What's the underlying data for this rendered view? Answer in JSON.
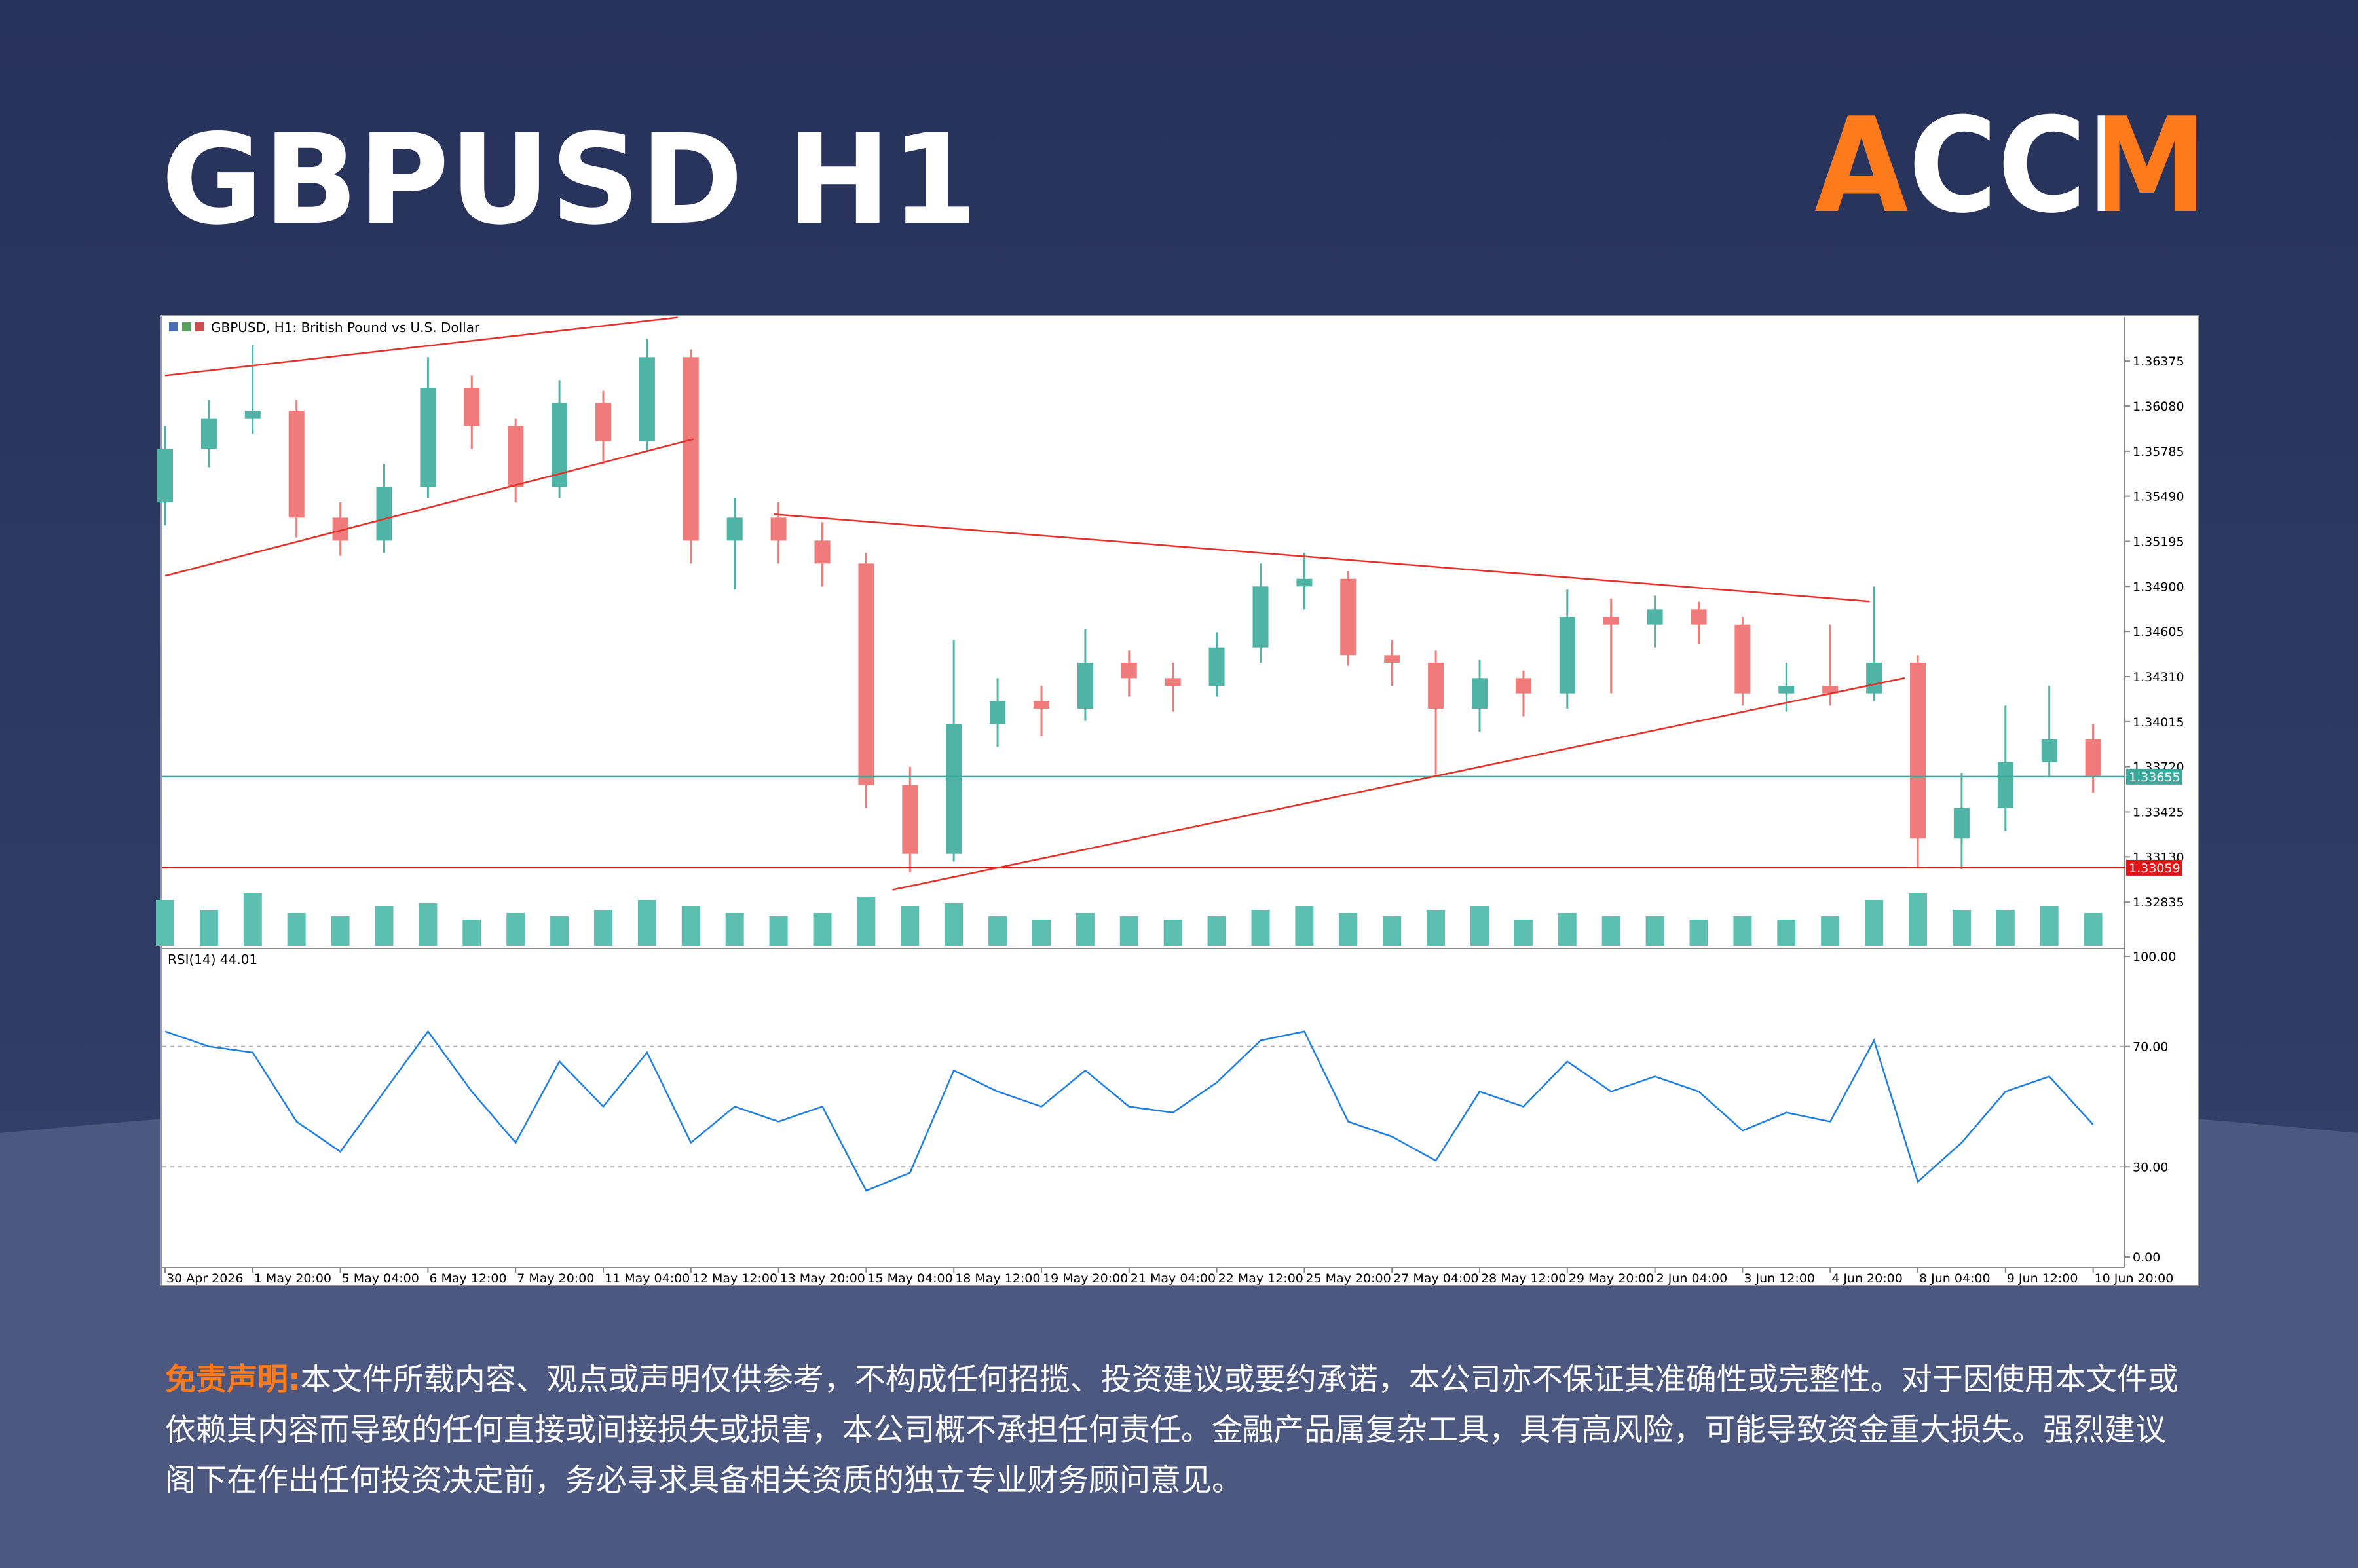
{
  "header": {
    "title": "GBPUSD H1",
    "logo": "ACCM"
  },
  "chart_data": {
    "type": "candlestick",
    "title": "GBPUSD, H1:  British Pound vs U.S. Dollar",
    "categories": [
      "30 Apr 2026",
      null,
      "1 May 20:00",
      null,
      "5 May 04:00",
      null,
      "6 May 12:00",
      null,
      "7 May 20:00",
      null,
      "11 May 04:00",
      null,
      "12 May 12:00",
      null,
      "13 May 20:00",
      null,
      "15 May 04:00",
      null,
      "18 May 12:00",
      null,
      "19 May 20:00",
      null,
      "21 May 04:00",
      null,
      "22 May 12:00",
      null,
      "25 May 20:00",
      null,
      "27 May 04:00",
      null,
      "28 May 12:00",
      null,
      "29 May 20:00",
      null,
      "2 Jun 04:00",
      null,
      "3 Jun 12:00",
      null,
      "4 Jun 20:00",
      null,
      "8 Jun 04:00",
      null,
      "9 Jun 12:00",
      null,
      "10 Jun 20:00"
    ],
    "open": [
      1.3545,
      1.358,
      1.36,
      1.3605,
      1.3535,
      1.352,
      1.3555,
      1.362,
      1.3595,
      1.3555,
      1.361,
      1.3585,
      1.364,
      1.352,
      1.3535,
      1.352,
      1.3505,
      1.336,
      1.3315,
      1.34,
      1.3415,
      1.341,
      1.344,
      1.343,
      1.3425,
      1.345,
      1.349,
      1.3495,
      1.3445,
      1.344,
      1.341,
      1.343,
      1.342,
      1.347,
      1.3465,
      1.3475,
      1.3465,
      1.342,
      1.3425,
      1.342,
      1.344,
      1.3325,
      1.3345,
      1.3375,
      1.339
    ],
    "high": [
      1.3595,
      1.3612,
      1.3648,
      1.3612,
      1.3545,
      1.357,
      1.364,
      1.3628,
      1.36,
      1.3625,
      1.3618,
      1.3652,
      1.3645,
      1.3548,
      1.3545,
      1.3532,
      1.3512,
      1.3372,
      1.3455,
      1.343,
      1.3425,
      1.3462,
      1.3448,
      1.344,
      1.346,
      1.3505,
      1.3512,
      1.35,
      1.3455,
      1.3448,
      1.3442,
      1.3435,
      1.3488,
      1.3482,
      1.3484,
      1.348,
      1.347,
      1.344,
      1.3465,
      1.349,
      1.3445,
      1.3368,
      1.3412,
      1.3425,
      1.34
    ],
    "low": [
      1.353,
      1.3568,
      1.359,
      1.3522,
      1.351,
      1.3512,
      1.3548,
      1.358,
      1.3545,
      1.3548,
      1.357,
      1.3578,
      1.3505,
      1.3488,
      1.3505,
      1.349,
      1.3345,
      1.3303,
      1.331,
      1.3385,
      1.3392,
      1.3402,
      1.3418,
      1.3408,
      1.3418,
      1.344,
      1.3475,
      1.3438,
      1.3425,
      1.3367,
      1.3395,
      1.3405,
      1.341,
      1.342,
      1.345,
      1.3452,
      1.3412,
      1.3408,
      1.3412,
      1.3415,
      1.3306,
      1.3305,
      1.333,
      1.3365,
      1.3355
    ],
    "close": [
      1.358,
      1.36,
      1.3605,
      1.3535,
      1.352,
      1.3555,
      1.362,
      1.3595,
      1.3555,
      1.361,
      1.3585,
      1.364,
      1.352,
      1.3535,
      1.352,
      1.3505,
      1.336,
      1.3315,
      1.34,
      1.3415,
      1.341,
      1.344,
      1.343,
      1.3425,
      1.345,
      1.349,
      1.3495,
      1.3445,
      1.344,
      1.341,
      1.343,
      1.342,
      1.347,
      1.3465,
      1.3475,
      1.3465,
      1.342,
      1.3425,
      1.342,
      1.344,
      1.3325,
      1.3345,
      1.3375,
      1.339,
      1.3366
    ],
    "up_color": "#4fb3a5",
    "down_color": "#ef7b7b",
    "ylim": [
      1.3254,
      1.3665
    ],
    "yticks": [
      1.36375,
      {
        "value": 1.3608,
        "label": "1.36080"
      },
      1.35785,
      {
        "value": 1.3549,
        "label": "1.35490"
      },
      1.35195,
      {
        "value": 1.349,
        "label": "1.34900"
      },
      1.34605,
      {
        "value": 1.3431,
        "label": "1.34310"
      },
      1.34015,
      {
        "value": 1.3372,
        "label": "1.33720"
      },
      1.33425,
      {
        "value": 1.3313,
        "label": "1.33130"
      },
      1.32835
    ],
    "hlines": [
      {
        "value": 1.33655,
        "color": "#3aa89a"
      },
      {
        "value": 1.33059,
        "color": "#e01515"
      }
    ],
    "trendlines": [
      {
        "x": [
          0,
          11.7
        ],
        "y": [
          1.3628,
          1.3666
        ],
        "color": "#e8302a"
      },
      {
        "x": [
          0,
          12.06
        ],
        "y": [
          1.34969,
          1.35864
        ],
        "color": "#e8302a"
      },
      {
        "x": [
          13.9,
          38.9
        ],
        "y": [
          1.35372,
          1.34802
        ],
        "color": "#e8302a"
      },
      {
        "x": [
          16.6,
          39.7
        ],
        "y": [
          1.32915,
          1.34301
        ],
        "color": "#e8302a"
      }
    ],
    "volume": {
      "color": "#5cbfb0",
      "values": [
        70,
        55,
        80,
        50,
        45,
        60,
        65,
        40,
        50,
        45,
        55,
        70,
        60,
        50,
        45,
        50,
        75,
        60,
        65,
        45,
        40,
        50,
        45,
        40,
        45,
        55,
        60,
        50,
        45,
        55,
        60,
        40,
        50,
        45,
        45,
        40,
        45,
        40,
        45,
        70,
        80,
        55,
        55,
        60,
        50
      ]
    },
    "rsi": {
      "label": "RSI(14) 44.01",
      "color": "#1e7fe0",
      "ylim": [
        0,
        100
      ],
      "yticks": [
        {
          "value": 100,
          "label": "100.00"
        },
        {
          "value": 70,
          "label": "70.00"
        },
        {
          "value": 30,
          "label": "30.00"
        },
        {
          "value": 0,
          "label": "0.00"
        }
      ],
      "values": [
        75,
        70,
        68,
        45,
        35,
        55,
        75,
        55,
        38,
        65,
        50,
        68,
        38,
        50,
        45,
        50,
        22,
        28,
        62,
        55,
        50,
        62,
        50,
        48,
        58,
        72,
        75,
        45,
        40,
        32,
        55,
        50,
        65,
        55,
        60,
        55,
        42,
        48,
        45,
        72,
        25,
        38,
        55,
        60,
        44.01
      ]
    }
  },
  "disclaimer": {
    "label": "免责声明:",
    "text": "本文件所载内容、观点或声明仅供参考，不构成任何招揽、投资建议或要约承诺，本公司亦不保证其准确性或完整性。对于因使用本文件或依赖其内容而导致的任何直接或间接损失或损害，本公司概不承担任何责任。金融产品属复杂工具，具有高风险，可能导致资金重大损失。强烈建议阁下在作出任何投资决定前，务必寻求具备相关资质的独立专业财务顾问意见。"
  }
}
